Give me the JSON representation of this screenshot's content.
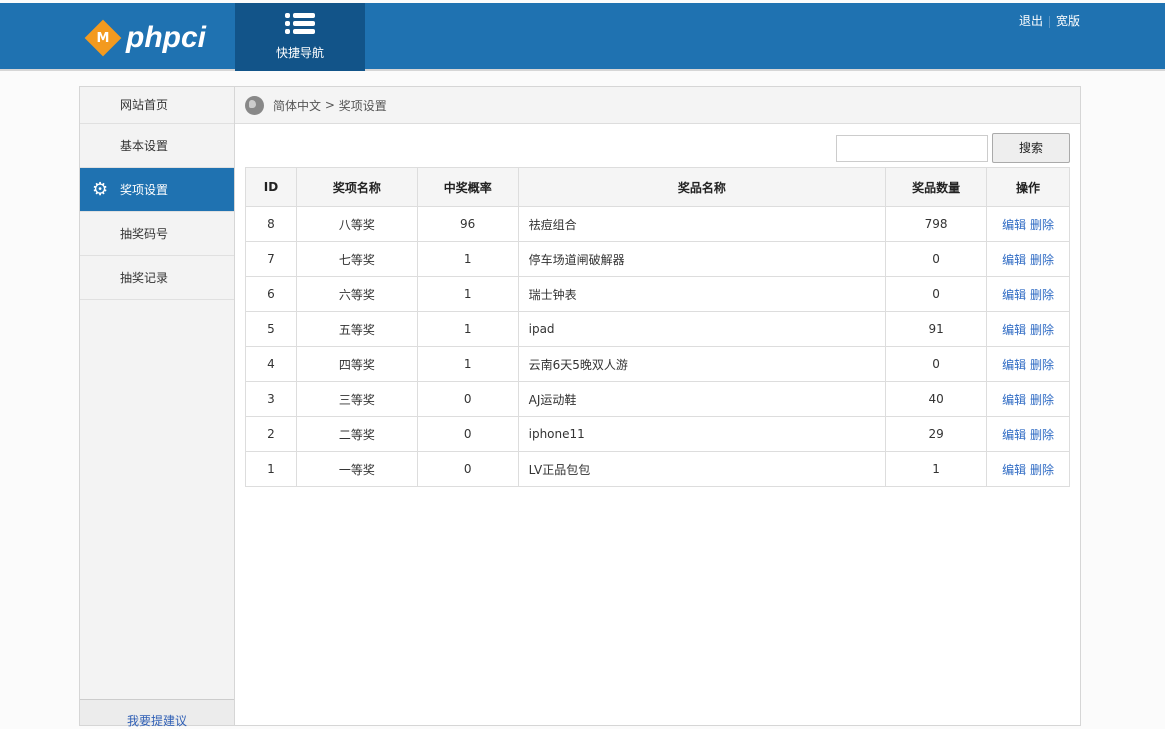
{
  "header": {
    "logo_badge": "M",
    "logo_text": "phpci",
    "quick_nav": "快捷导航",
    "links": [
      "退出",
      "宽版"
    ]
  },
  "sidebar": {
    "items": [
      {
        "label": "网站首页"
      },
      {
        "label": "基本设置"
      },
      {
        "label": "奖项设置",
        "active": true,
        "icon": "gear-icon"
      },
      {
        "label": "抽奖码号"
      },
      {
        "label": "抽奖记录"
      }
    ],
    "feedback": "我要提建议"
  },
  "breadcrumb": {
    "root": "简体中文",
    "sep": ">",
    "current": "奖项设置"
  },
  "search": {
    "value": "",
    "placeholder": "",
    "button": "搜索"
  },
  "table": {
    "headers": [
      "ID",
      "奖项名称",
      "中奖概率",
      "奖品名称",
      "奖品数量",
      "操作"
    ],
    "rows": [
      [
        "8",
        "八等奖",
        "96",
        "祛痘组合",
        "798"
      ],
      [
        "7",
        "七等奖",
        "1",
        "停车场道闸破解器",
        "0"
      ],
      [
        "6",
        "六等奖",
        "1",
        "瑞士钟表",
        "0"
      ],
      [
        "5",
        "五等奖",
        "1",
        "ipad",
        "91"
      ],
      [
        "4",
        "四等奖",
        "1",
        "云南6天5晚双人游",
        "0"
      ],
      [
        "3",
        "三等奖",
        "0",
        "AJ运动鞋",
        "40"
      ],
      [
        "2",
        "二等奖",
        "0",
        "iphone11",
        "29"
      ],
      [
        "1",
        "一等奖",
        "0",
        "LV正品包包",
        "1"
      ]
    ],
    "actions": {
      "edit": "编辑",
      "delete": "删除"
    }
  },
  "colors": {
    "header": "#1f72b1",
    "quick_nav": "#125489",
    "active": "#1f72b1",
    "link": "#2f6bc4"
  }
}
